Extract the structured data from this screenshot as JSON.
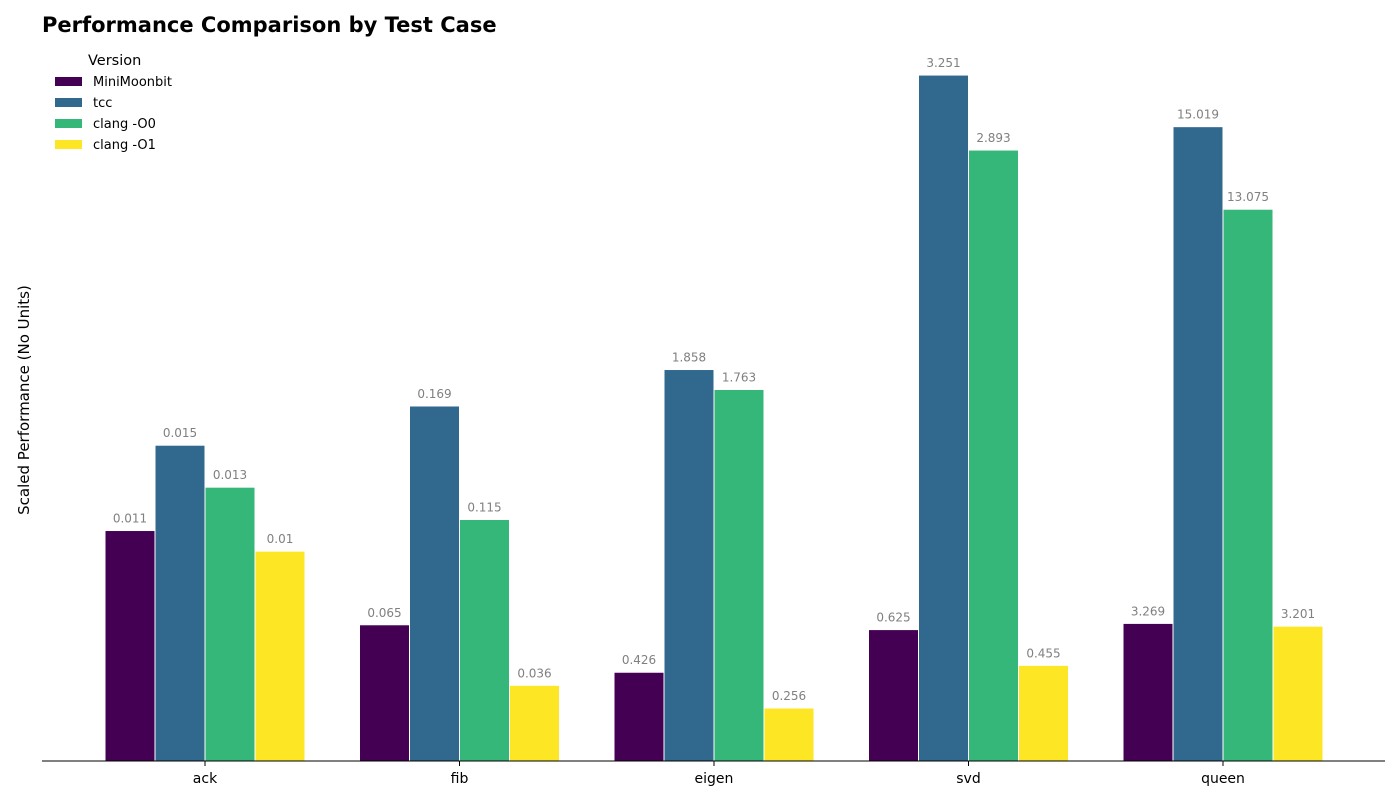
{
  "chart_data": {
    "type": "bar",
    "title": "Performance Comparison by Test Case",
    "xlabel": "",
    "ylabel": "Scaled Performance (No Units)",
    "categories": [
      "ack",
      "fib",
      "eigen",
      "svd",
      "queen"
    ],
    "legend_title": "Version",
    "legend_position": "top-left",
    "grid": false,
    "series": [
      {
        "name": "MiniMoonbit",
        "color": "#440154",
        "values": [
          0.011,
          0.065,
          0.426,
          0.625,
          3.269
        ],
        "labels": [
          "0.011",
          "0.065",
          "0.426",
          "0.625",
          "3.269"
        ],
        "heights": [
          0.335,
          0.198,
          0.129,
          0.191,
          0.2
        ]
      },
      {
        "name": "tcc",
        "color": "#31688e",
        "values": [
          0.015,
          0.169,
          1.858,
          3.251,
          15.019
        ],
        "labels": [
          "0.015",
          "0.169",
          "1.858",
          "3.251",
          "15.019"
        ],
        "heights": [
          0.459,
          0.516,
          0.569,
          0.997,
          0.922
        ]
      },
      {
        "name": "clang -O0",
        "color": "#35b779",
        "values": [
          0.013,
          0.115,
          1.763,
          2.893,
          13.075
        ],
        "labels": [
          "0.013",
          "0.115",
          "1.763",
          "2.893",
          "13.075"
        ],
        "heights": [
          0.398,
          0.351,
          0.54,
          0.888,
          0.802
        ]
      },
      {
        "name": "clang -O1",
        "color": "#fde725",
        "values": [
          0.01,
          0.036,
          0.256,
          0.455,
          3.201
        ],
        "labels": [
          "0.01",
          "0.036",
          "0.256",
          "0.455",
          "3.201"
        ],
        "heights": [
          0.305,
          0.11,
          0.077,
          0.139,
          0.196
        ]
      }
    ]
  }
}
